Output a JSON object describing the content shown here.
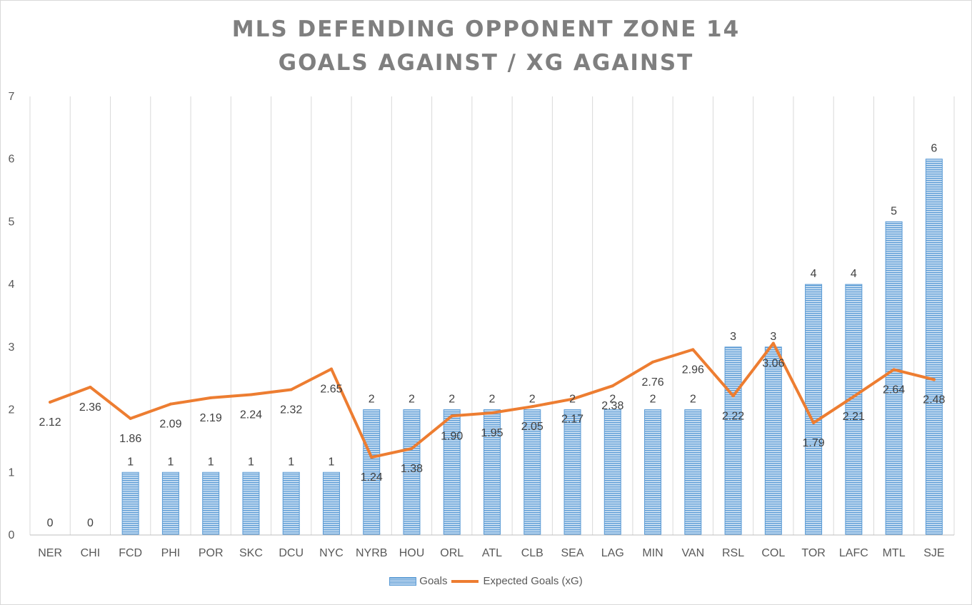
{
  "title_lines": [
    "MLS DEFENDING OPPONENT ZONE 14",
    "GOALS AGAINST / XG AGAINST"
  ],
  "legend": {
    "goals": "Goals",
    "xg": "Expected Goals (xG)"
  },
  "colors": {
    "bar": "#5b9bd5",
    "bar_light": "#d6e6f5",
    "line": "#ed7d31",
    "grid": "#d9d9d9",
    "axis": "#bfbfbf"
  },
  "chart_data": {
    "type": "bar",
    "title": "MLS DEFENDING OPPONENT ZONE 14 GOALS AGAINST / XG AGAINST",
    "categories": [
      "NER",
      "CHI",
      "FCD",
      "PHI",
      "POR",
      "SKC",
      "DCU",
      "NYC",
      "NYRB",
      "HOU",
      "ORL",
      "ATL",
      "CLB",
      "SEA",
      "LAG",
      "MIN",
      "VAN",
      "RSL",
      "COL",
      "TOR",
      "LAFC",
      "MTL",
      "SJE"
    ],
    "series": [
      {
        "name": "Goals",
        "type": "bar",
        "values": [
          0,
          0,
          1,
          1,
          1,
          1,
          1,
          1,
          2,
          2,
          2,
          2,
          2,
          2,
          2,
          2,
          2,
          3,
          3,
          4,
          4,
          5,
          6
        ],
        "labels": [
          "0",
          "0",
          "1",
          "1",
          "1",
          "1",
          "1",
          "1",
          "2",
          "2",
          "2",
          "2",
          "2",
          "2",
          "2",
          "2",
          "2",
          "3",
          "3",
          "4",
          "4",
          "5",
          "6"
        ]
      },
      {
        "name": "Expected Goals (xG)",
        "type": "line",
        "values": [
          2.12,
          2.36,
          1.86,
          2.09,
          2.19,
          2.24,
          2.32,
          2.65,
          1.24,
          1.38,
          1.9,
          1.95,
          2.05,
          2.17,
          2.38,
          2.76,
          2.96,
          2.22,
          3.06,
          1.79,
          2.21,
          2.64,
          2.48
        ],
        "labels": [
          "2.12",
          "2.36",
          "1.86",
          "2.09",
          "2.19",
          "2.24",
          "2.32",
          "2.65",
          "1.24",
          "1.38",
          "1.90",
          "1.95",
          "2.05",
          "2.17",
          "2.38",
          "2.76",
          "2.96",
          "2.22",
          "3.06",
          "1.79",
          "2.21",
          "2.64",
          "2.48"
        ]
      }
    ],
    "ylim": [
      0,
      7
    ],
    "yticks": [
      "0",
      "1",
      "2",
      "3",
      "4",
      "5",
      "6",
      "7"
    ],
    "grid": "vertical",
    "legend_position": "bottom",
    "xlabel": "",
    "ylabel": ""
  }
}
